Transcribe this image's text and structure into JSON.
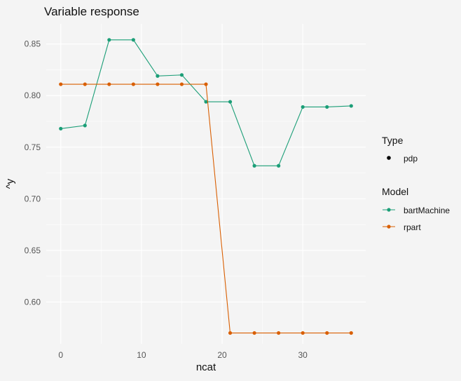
{
  "chart_data": {
    "type": "line",
    "title": "Variable response",
    "xlabel": "ncat",
    "ylabel": "^y",
    "xlim": [
      -1.8,
      37.8
    ],
    "ylim": [
      0.5595,
      0.8695
    ],
    "x_ticks": [
      0,
      10,
      20,
      30
    ],
    "y_ticks": [
      0.6,
      0.65,
      0.7,
      0.75,
      0.8,
      0.85
    ],
    "x_tick_labels": [
      "0",
      "10",
      "20",
      "30"
    ],
    "y_tick_labels": [
      "0.60",
      "0.65",
      "0.70",
      "0.75",
      "0.80",
      "0.85"
    ],
    "x": [
      0,
      3,
      6,
      9,
      12,
      15,
      18,
      21,
      24,
      27,
      30,
      33,
      36
    ],
    "series": [
      {
        "name": "bartMachine",
        "color": "#1b9e77",
        "values": [
          0.768,
          0.771,
          0.854,
          0.854,
          0.819,
          0.82,
          0.794,
          0.794,
          0.732,
          0.732,
          0.789,
          0.789,
          0.79
        ]
      },
      {
        "name": "rpart",
        "color": "#d95f02",
        "values": [
          0.811,
          0.811,
          0.811,
          0.811,
          0.811,
          0.811,
          0.811,
          0.57,
          0.57,
          0.57,
          0.57,
          0.57,
          0.57
        ]
      }
    ],
    "legend": {
      "position": "right",
      "type_title": "Type",
      "type_entries": [
        "pdp"
      ],
      "model_title": "Model"
    },
    "grid": true
  }
}
